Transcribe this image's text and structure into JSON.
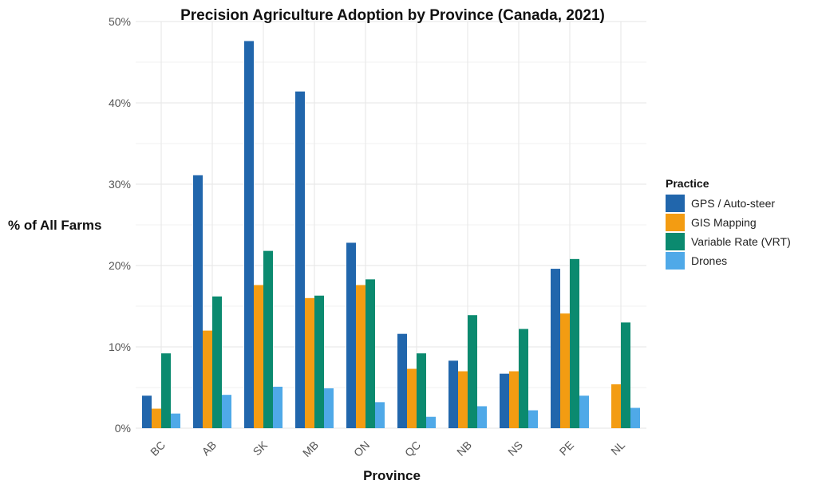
{
  "chart_data": {
    "type": "bar",
    "title": "Precision Agriculture Adoption by Province (Canada, 2021)",
    "xlabel": "Province",
    "ylabel": "% of All Farms",
    "categories": [
      "BC",
      "AB",
      "SK",
      "MB",
      "ON",
      "QC",
      "NB",
      "NS",
      "PE",
      "NL"
    ],
    "ylim": [
      0,
      50
    ],
    "yticks": [
      0,
      10,
      20,
      30,
      40,
      50
    ],
    "ytick_labels": [
      "0%",
      "10%",
      "20%",
      "30%",
      "40%",
      "50%"
    ],
    "grid": true,
    "legend": {
      "title": "Practice",
      "position": "right"
    },
    "series": [
      {
        "name": "GPS / Auto-steer",
        "color": "#2166ac",
        "values": [
          4.0,
          31.1,
          47.6,
          41.4,
          22.8,
          11.6,
          8.3,
          6.7,
          19.6,
          null
        ]
      },
      {
        "name": "GIS Mapping",
        "color": "#f39c12",
        "values": [
          2.4,
          12.0,
          17.6,
          16.0,
          17.6,
          7.3,
          7.0,
          7.0,
          14.1,
          5.4
        ]
      },
      {
        "name": "Variable Rate (VRT)",
        "color": "#0b8a6f",
        "values": [
          9.2,
          16.2,
          21.8,
          16.3,
          18.3,
          9.2,
          13.9,
          12.2,
          20.8,
          13.0
        ]
      },
      {
        "name": "Drones",
        "color": "#4fa9e8",
        "values": [
          1.8,
          4.1,
          5.1,
          4.9,
          3.2,
          1.4,
          2.7,
          2.2,
          4.0,
          2.5
        ]
      }
    ]
  }
}
